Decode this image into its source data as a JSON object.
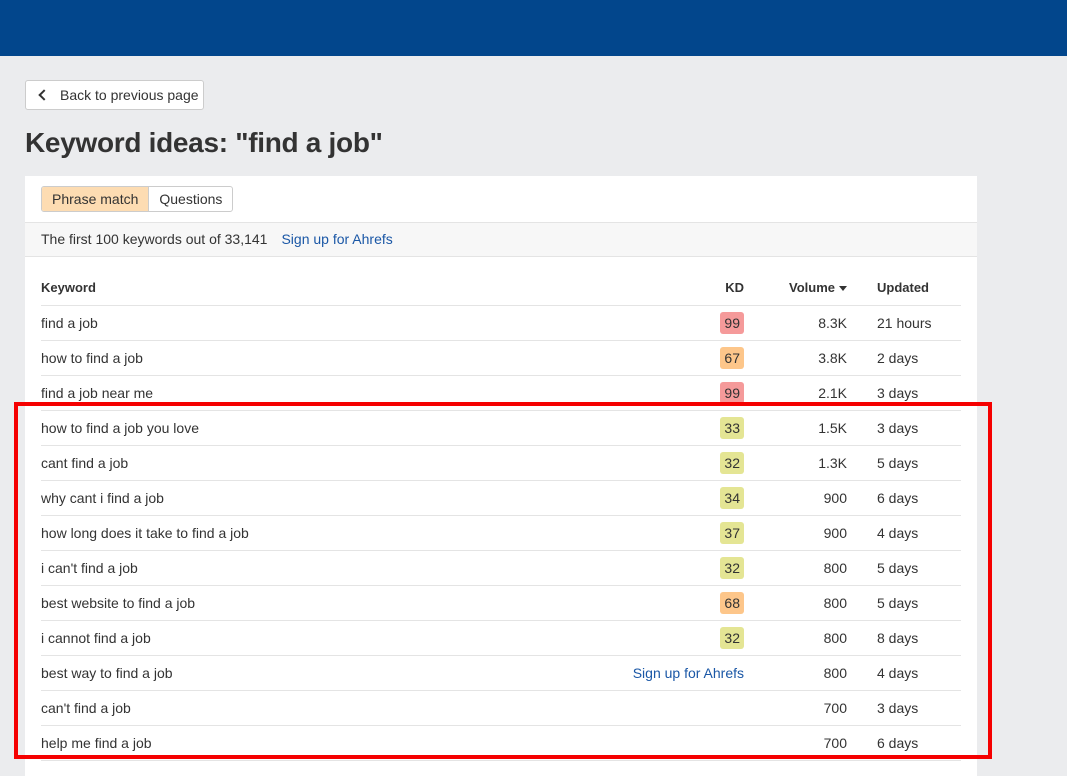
{
  "back_label": "Back to previous page",
  "title": "Keyword ideas: \"find a job\"",
  "tabs": [
    {
      "label": "Phrase match",
      "active": true
    },
    {
      "label": "Questions",
      "active": false
    }
  ],
  "info": {
    "text": "The first 100 keywords out of 33,141",
    "link": "Sign up for Ahrefs"
  },
  "columns": {
    "keyword": "Keyword",
    "kd": "KD",
    "volume": "Volume",
    "updated": "Updated"
  },
  "kd_colors": {
    "high": "#f59a9a",
    "medium": "#fdc68a",
    "low": "#e4e594"
  },
  "highlight_color": "#f50000",
  "rows": [
    {
      "keyword": "find a job",
      "kd": "99",
      "kd_level": "high",
      "volume": "8.3K",
      "updated": "21 hours"
    },
    {
      "keyword": "how to find a job",
      "kd": "67",
      "kd_level": "medium",
      "volume": "3.8K",
      "updated": "2 days"
    },
    {
      "keyword": "find a job near me",
      "kd": "99",
      "kd_level": "high",
      "volume": "2.1K",
      "updated": "3 days"
    },
    {
      "keyword": "how to find a job you love",
      "kd": "33",
      "kd_level": "low",
      "volume": "1.5K",
      "updated": "3 days"
    },
    {
      "keyword": "cant find a job",
      "kd": "32",
      "kd_level": "low",
      "volume": "1.3K",
      "updated": "5 days"
    },
    {
      "keyword": "why cant i find a job",
      "kd": "34",
      "kd_level": "low",
      "volume": "900",
      "updated": "6 days"
    },
    {
      "keyword": "how long does it take to find a job",
      "kd": "37",
      "kd_level": "low",
      "volume": "900",
      "updated": "4 days"
    },
    {
      "keyword": "i can't find a job",
      "kd": "32",
      "kd_level": "low",
      "volume": "800",
      "updated": "5 days"
    },
    {
      "keyword": "best website to find a job",
      "kd": "68",
      "kd_level": "medium",
      "volume": "800",
      "updated": "5 days"
    },
    {
      "keyword": "i cannot find a job",
      "kd": "32",
      "kd_level": "low",
      "volume": "800",
      "updated": "8 days"
    },
    {
      "keyword": "best way to find a job",
      "kd_link": "Sign up for Ahrefs",
      "volume": "800",
      "updated": "4 days"
    },
    {
      "keyword": "can't find a job",
      "volume": "700",
      "updated": "3 days"
    },
    {
      "keyword": "help me find a job",
      "volume": "700",
      "updated": "6 days"
    }
  ]
}
